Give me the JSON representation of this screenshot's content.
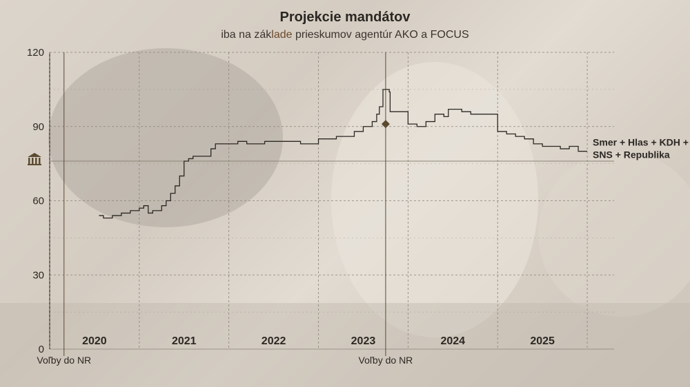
{
  "chart_data": {
    "type": "line",
    "title": "Projekcie mandátov",
    "subtitle_parts": [
      "iba na zák",
      "lade",
      " prieskumov agentúr AKO a FOCUS"
    ],
    "ylim": [
      0,
      120
    ],
    "yticks": [
      0,
      30,
      60,
      90,
      120
    ],
    "majority_line": 76,
    "year_labels": [
      {
        "label": "2020",
        "x": 2020.5
      },
      {
        "label": "2021",
        "x": 2021.5
      },
      {
        "label": "2022",
        "x": 2022.5
      },
      {
        "label": "2023",
        "x": 2023.5
      },
      {
        "label": "2024",
        "x": 2024.5
      },
      {
        "label": "2025",
        "x": 2025.5
      }
    ],
    "xlim": [
      2020.0,
      2026.3
    ],
    "election_markers": [
      {
        "label": "Voľby do NR",
        "x": 2020.16
      },
      {
        "label": "Voľby do NR",
        "x": 2023.75
      }
    ],
    "election_result": {
      "x": 2023.75,
      "y": 91
    },
    "series": [
      {
        "name": "Smer + Hlas + KDH + SNS + Republika",
        "name_lines": [
          "Smer + Hlas + KDH +",
          "SNS + Republika"
        ],
        "points": [
          [
            2020.55,
            54
          ],
          [
            2020.6,
            53
          ],
          [
            2020.7,
            54
          ],
          [
            2020.8,
            55
          ],
          [
            2020.9,
            56
          ],
          [
            2021.0,
            57
          ],
          [
            2021.05,
            58
          ],
          [
            2021.1,
            55
          ],
          [
            2021.15,
            56
          ],
          [
            2021.25,
            58
          ],
          [
            2021.3,
            60
          ],
          [
            2021.35,
            63
          ],
          [
            2021.4,
            66
          ],
          [
            2021.45,
            70
          ],
          [
            2021.5,
            76
          ],
          [
            2021.55,
            77
          ],
          [
            2021.6,
            78
          ],
          [
            2021.7,
            78
          ],
          [
            2021.8,
            81
          ],
          [
            2021.85,
            83
          ],
          [
            2022.0,
            83
          ],
          [
            2022.1,
            84
          ],
          [
            2022.2,
            83
          ],
          [
            2022.4,
            84
          ],
          [
            2022.6,
            84
          ],
          [
            2022.8,
            83
          ],
          [
            2023.0,
            85
          ],
          [
            2023.2,
            86
          ],
          [
            2023.4,
            88
          ],
          [
            2023.5,
            90
          ],
          [
            2023.6,
            92
          ],
          [
            2023.65,
            95
          ],
          [
            2023.68,
            98
          ],
          [
            2023.72,
            105
          ],
          [
            2023.79,
            104
          ],
          [
            2023.8,
            96
          ],
          [
            2023.9,
            96
          ],
          [
            2024.0,
            91
          ],
          [
            2024.1,
            90
          ],
          [
            2024.2,
            92
          ],
          [
            2024.3,
            95
          ],
          [
            2024.4,
            94
          ],
          [
            2024.45,
            97
          ],
          [
            2024.6,
            96
          ],
          [
            2024.7,
            95
          ],
          [
            2024.9,
            95
          ],
          [
            2025.0,
            88
          ],
          [
            2025.1,
            87
          ],
          [
            2025.2,
            86
          ],
          [
            2025.3,
            85
          ],
          [
            2025.4,
            83
          ],
          [
            2025.5,
            82
          ],
          [
            2025.6,
            82
          ],
          [
            2025.7,
            81
          ],
          [
            2025.8,
            82
          ],
          [
            2025.9,
            80
          ],
          [
            2026.0,
            80
          ]
        ]
      }
    ],
    "grid": true,
    "colors": {
      "line": "#2b2723",
      "grid": "#8a8276",
      "marker": "#5b4a2e",
      "text": "#2b2723"
    }
  }
}
